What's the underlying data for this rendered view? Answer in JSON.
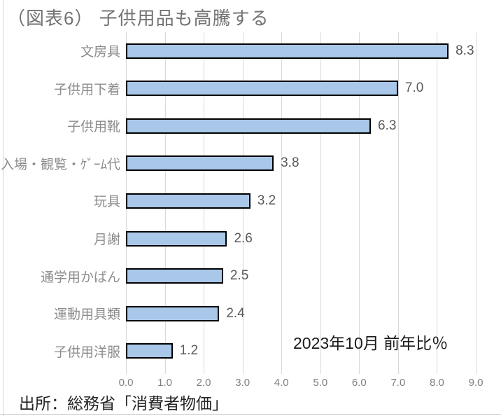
{
  "page": {
    "source": "出所：総務省「消費者物価」"
  },
  "chart_data": {
    "type": "bar",
    "orientation": "horizontal",
    "title": "（図表6） 子供用品も高騰する",
    "annotation": "2023年10月 前年比％",
    "categories": [
      "文房具",
      "子供用下着",
      "子供用靴",
      "入場・観覧・ｹﾞｰﾑ代",
      "玩具",
      "月謝",
      "通学用かばん",
      "運動用具類",
      "子供用洋服"
    ],
    "values": [
      8.3,
      7.0,
      6.3,
      3.8,
      3.2,
      2.6,
      2.5,
      2.4,
      1.2
    ],
    "value_labels": [
      "8.3",
      "7.0",
      "6.3",
      "3.8",
      "3.2",
      "2.6",
      "2.5",
      "2.4",
      "1.2"
    ],
    "xlabel": "",
    "ylabel": "",
    "xlim": [
      0.0,
      9.0
    ],
    "x_ticks": [
      "0.0",
      "1.0",
      "2.0",
      "3.0",
      "4.0",
      "5.0",
      "6.0",
      "7.0",
      "8.0",
      "9.0"
    ],
    "grid": true,
    "legend": false,
    "colors": {
      "bar_fill": "#A9C7E8",
      "bar_border": "#000000",
      "gridline": "#D9D9D9",
      "title_text": "#737373",
      "category_text": "#8C8C8C",
      "value_text": "#595959",
      "tick_text": "#7F7F7F",
      "annotation_text": "#1A1A1A",
      "source_text": "#262626"
    }
  }
}
